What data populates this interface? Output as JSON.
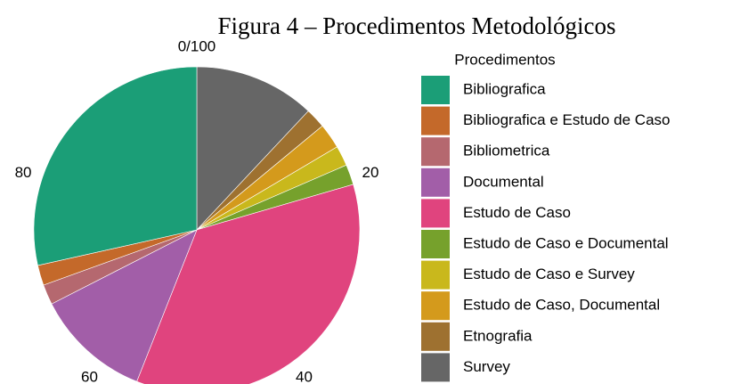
{
  "chart_data": {
    "type": "pie",
    "title": "Figura 4 – Procedimentos Metodológicos",
    "legend_title": "Procedimentos",
    "categories": [
      "Bibliografica",
      "Bibliografica e Estudo de Caso",
      "Bibliometrica",
      "Documental",
      "Estudo de Caso",
      "Estudo de Caso e Documental",
      "Estudo de Caso e Survey",
      "Estudo de Caso, Documental",
      "Etnografia",
      "Survey"
    ],
    "values": [
      28.5,
      2,
      2,
      11.5,
      35.5,
      2,
      2,
      2.5,
      2,
      12
    ],
    "colors": [
      "#1b9e77",
      "#c4692a",
      "#b5686f",
      "#a25ea8",
      "#e0447e",
      "#76a12c",
      "#c9b81c",
      "#d49a1c",
      "#9e7130",
      "#666666"
    ],
    "xlim": [
      0,
      100
    ],
    "xticks": [
      {
        "value": 0,
        "label": "0/100"
      },
      20,
      40,
      60,
      80
    ],
    "legend_position": "right"
  }
}
